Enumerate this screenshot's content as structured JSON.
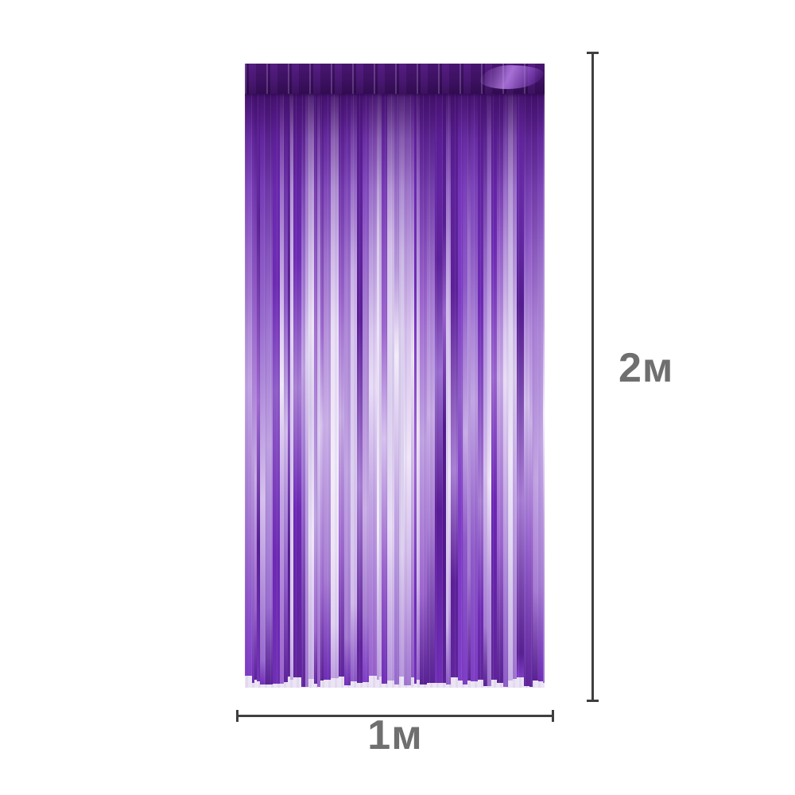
{
  "image_type": "product-dimension-diagram",
  "subject": "purple metallic foil fringe curtain",
  "dimensions": {
    "height_label": "2м",
    "width_label": "1м"
  },
  "annotation_style": {
    "line_color": "#3f3f3f",
    "label_color": "#6f6f6f"
  },
  "curtain_palette": {
    "header_base": "#45136f",
    "header_sheen": "#7b3cc0",
    "top_shade": "#380a5c",
    "deep": [
      "#5a1d96",
      "#6d28b5",
      "#7e3ac7",
      "#531a8d"
    ],
    "mid": [
      "#8f5cc9",
      "#9a6fd0",
      "#a87fd4",
      "#9d66cf"
    ],
    "light": [
      "#bfa2e2",
      "#c9aee6",
      "#d5c0ee",
      "#c2a5e4"
    ],
    "pale": [
      "#dcd0ef",
      "#e8ddf6",
      "#f2ecfa",
      "#efe7f9"
    ]
  }
}
